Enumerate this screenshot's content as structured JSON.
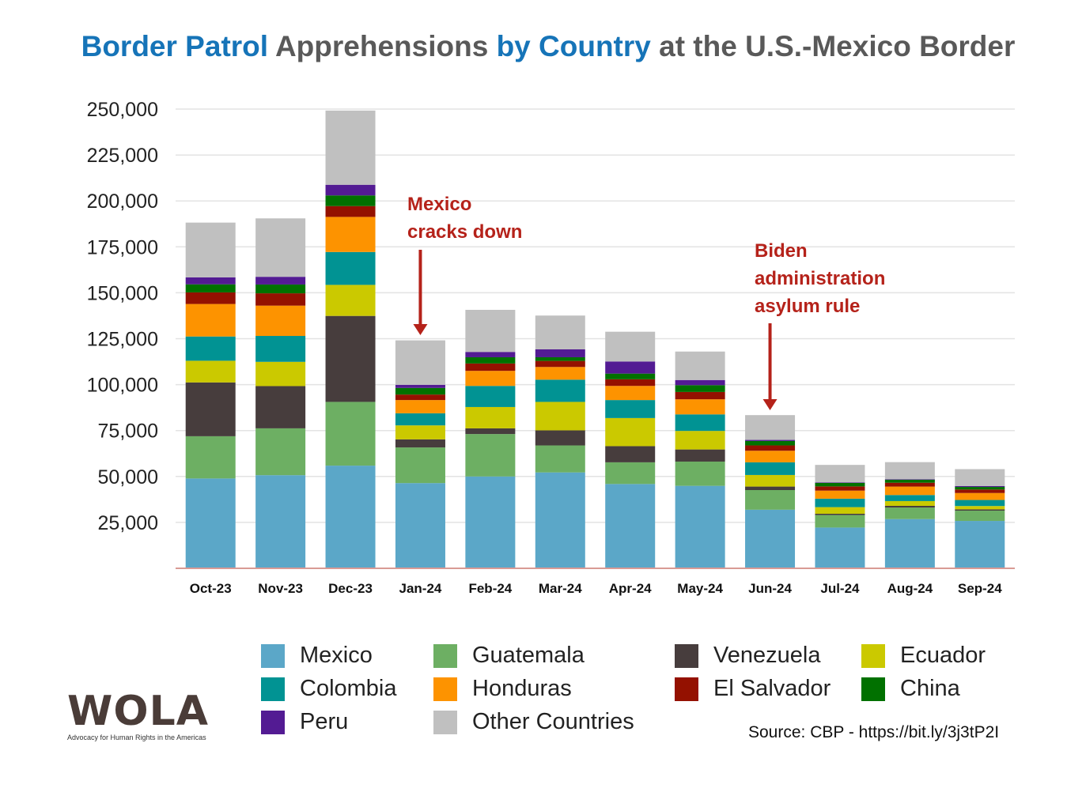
{
  "title": {
    "part1": "Border Patrol",
    "part2": " Apprehensions ",
    "part3": "by Country",
    "part4": " at the U.S.-Mexico Border"
  },
  "chart_data": {
    "type": "bar",
    "stacked": true,
    "title": "Border Patrol Apprehensions by Country at the U.S.-Mexico Border",
    "xlabel": "",
    "ylabel": "",
    "ylim": [
      0,
      250000
    ],
    "yticks": [
      "25,000",
      "50,000",
      "75,000",
      "100,000",
      "125,000",
      "150,000",
      "175,000",
      "200,000",
      "225,000",
      "250,000"
    ],
    "ytick_values": [
      25000,
      50000,
      75000,
      100000,
      125000,
      150000,
      175000,
      200000,
      225000,
      250000
    ],
    "grid": true,
    "legend_position": "bottom",
    "categories": [
      "Oct-23",
      "Nov-23",
      "Dec-23",
      "Jan-24",
      "Feb-24",
      "Mar-24",
      "Apr-24",
      "May-24",
      "Jun-24",
      "Jul-24",
      "Aug-24",
      "Sep-24"
    ],
    "series": [
      {
        "name": "Mexico",
        "color": "#5ba7c8",
        "values": [
          48900,
          50700,
          55900,
          46400,
          50000,
          52200,
          45900,
          44900,
          31900,
          22200,
          26800,
          25800
        ]
      },
      {
        "name": "Guatemala",
        "color": "#6daf63",
        "values": [
          23000,
          25500,
          34700,
          19400,
          23100,
          14700,
          11800,
          13200,
          10700,
          6800,
          6300,
          5600
        ]
      },
      {
        "name": "Venezuela",
        "color": "#473d3d",
        "values": [
          29300,
          23000,
          46800,
          4400,
          3100,
          8200,
          8800,
          6600,
          1900,
          700,
          900,
          700
        ]
      },
      {
        "name": "Ecuador",
        "color": "#cbc900",
        "values": [
          11800,
          13200,
          16900,
          7600,
          11600,
          15500,
          15300,
          10100,
          6300,
          3600,
          2600,
          1800
        ]
      },
      {
        "name": "Colombia",
        "color": "#019393",
        "values": [
          13200,
          14100,
          17900,
          6600,
          11500,
          12100,
          9800,
          9000,
          6900,
          4600,
          3300,
          3300
        ]
      },
      {
        "name": "Honduras",
        "color": "#fd9300",
        "values": [
          17700,
          16500,
          19100,
          7200,
          8200,
          6900,
          7700,
          8200,
          6300,
          4400,
          4600,
          3800
        ]
      },
      {
        "name": "El Salvador",
        "color": "#941100",
        "values": [
          6300,
          6700,
          5900,
          3000,
          4000,
          3300,
          3600,
          4000,
          2900,
          2300,
          2100,
          1900
        ]
      },
      {
        "name": "China",
        "color": "#017100",
        "values": [
          4400,
          4800,
          5800,
          3600,
          3400,
          2000,
          3100,
          3700,
          2400,
          1900,
          1600,
          1400
        ]
      },
      {
        "name": "Peru",
        "color": "#531b93",
        "values": [
          3800,
          4200,
          5800,
          1700,
          2900,
          4300,
          6600,
          2800,
          600,
          300,
          300,
          500
        ]
      },
      {
        "name": "Other Countries",
        "color": "#c0c0c0",
        "values": [
          29800,
          31800,
          40400,
          24200,
          22900,
          18400,
          16200,
          15500,
          13500,
          9500,
          9300,
          9200
        ]
      }
    ],
    "annotations": [
      {
        "text_lines": [
          "Mexico",
          "cracks down"
        ],
        "category": "Jan-24"
      },
      {
        "text_lines": [
          "Biden",
          "administration",
          "asylum rule"
        ],
        "category": "Jun-24"
      }
    ]
  },
  "legend_order": [
    0,
    1,
    2,
    3,
    4,
    5,
    6,
    7,
    8,
    9
  ],
  "source": "Source: CBP - https://bit.ly/3j3tP2I",
  "logo": {
    "name": "WOLA",
    "tagline": "Advocacy for Human Rights in the Americas"
  }
}
